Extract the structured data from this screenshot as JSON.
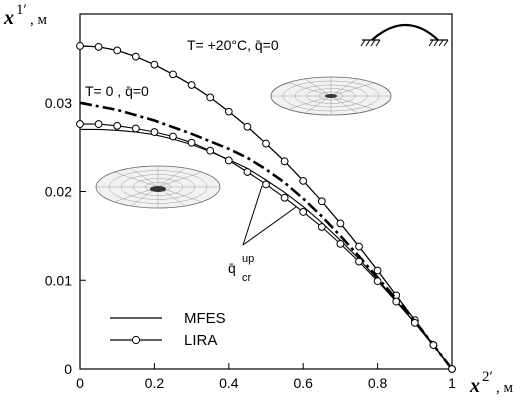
{
  "chart_data": {
    "type": "line",
    "xlabel": {
      "symbol": "x",
      "sup": "2′",
      "unit": ", м"
    },
    "ylabel": {
      "symbol": "x",
      "sup": "1′",
      "unit": ", м"
    },
    "xlim": [
      0,
      1
    ],
    "ylim": [
      0,
      0.04
    ],
    "xticks": [
      "0",
      "0.2",
      "0.4",
      "0.6",
      "0.8",
      "1"
    ],
    "yticks": [
      "0",
      "0.01",
      "0.02",
      "0.03"
    ],
    "xtick_values": [
      0,
      0.2,
      0.4,
      0.6,
      0.8,
      1
    ],
    "ytick_values": [
      0,
      0.01,
      0.02,
      0.03
    ],
    "grid": false,
    "legend_position": "bottom-left",
    "legend": [
      {
        "label": "MFES",
        "style": "solid"
      },
      {
        "label": "LIRA",
        "style": "circle-markers"
      }
    ],
    "series": [
      {
        "style": "solid",
        "x": [
          0,
          0.05,
          0.1,
          0.15,
          0.2,
          0.25,
          0.3,
          0.35,
          0.4,
          0.45,
          0.5,
          0.55,
          0.6,
          0.65,
          0.7,
          0.75,
          0.8,
          0.85,
          0.9,
          0.95,
          1.0
        ],
        "y": [
          0.0364,
          0.0363,
          0.0359,
          0.0352,
          0.0343,
          0.0332,
          0.032,
          0.0306,
          0.029,
          0.0273,
          0.0254,
          0.0234,
          0.0212,
          0.0189,
          0.0164,
          0.0138,
          0.0111,
          0.0083,
          0.0055,
          0.0027,
          0.0
        ]
      },
      {
        "style": "circle-markers",
        "x": [
          0,
          0.05,
          0.1,
          0.15,
          0.2,
          0.25,
          0.3,
          0.35,
          0.4,
          0.45,
          0.5,
          0.55,
          0.6,
          0.65,
          0.7,
          0.75,
          0.8,
          0.85,
          0.9,
          0.95,
          1.0
        ],
        "y": [
          0.0364,
          0.0363,
          0.0359,
          0.0352,
          0.0343,
          0.0332,
          0.032,
          0.0306,
          0.029,
          0.0273,
          0.0254,
          0.0234,
          0.0212,
          0.0189,
          0.0164,
          0.0138,
          0.0111,
          0.0083,
          0.0055,
          0.0027,
          0.0
        ]
      },
      {
        "style": "dash-dot",
        "x": [
          0,
          0.1,
          0.2,
          0.3,
          0.4,
          0.45,
          0.5,
          0.55,
          0.6,
          0.65,
          0.7,
          0.75,
          0.8,
          0.85,
          0.9,
          0.95,
          1.0
        ],
        "y": [
          0.03,
          0.0292,
          0.028,
          0.0265,
          0.0248,
          0.0238,
          0.0225,
          0.021,
          0.0192,
          0.0172,
          0.015,
          0.0127,
          0.0103,
          0.0079,
          0.0054,
          0.0027,
          0.0
        ]
      },
      {
        "style": "solid",
        "x": [
          0,
          0.05,
          0.1,
          0.15,
          0.2,
          0.25,
          0.3,
          0.35,
          0.4,
          0.45,
          0.5,
          0.55,
          0.6,
          0.65,
          0.7,
          0.75,
          0.8,
          0.85,
          0.9,
          0.95,
          1.0
        ],
        "y": [
          0.027,
          0.027,
          0.0269,
          0.0267,
          0.0264,
          0.0259,
          0.0253,
          0.0245,
          0.0236,
          0.0226,
          0.0213,
          0.0199,
          0.0183,
          0.0165,
          0.0145,
          0.0124,
          0.0101,
          0.0077,
          0.0052,
          0.0026,
          0.0
        ]
      },
      {
        "style": "circle-markers",
        "x": [
          0,
          0.05,
          0.1,
          0.15,
          0.2,
          0.25,
          0.3,
          0.35,
          0.4,
          0.45,
          0.5,
          0.55,
          0.6,
          0.65,
          0.7,
          0.75,
          0.8,
          0.85,
          0.9,
          0.95,
          1.0
        ],
        "y": [
          0.0276,
          0.0276,
          0.0274,
          0.0271,
          0.0267,
          0.0262,
          0.0255,
          0.0246,
          0.0235,
          0.0222,
          0.0208,
          0.0193,
          0.0177,
          0.016,
          0.0141,
          0.0121,
          0.0099,
          0.0076,
          0.0052,
          0.0027,
          0.0
        ]
      }
    ],
    "annotations": [
      {
        "text": "T= +20°C, q̄=0"
      },
      {
        "text": "T= 0 , q̄=0"
      },
      {
        "text_base": "q̄",
        "sup": "up",
        "sub": "cr"
      }
    ]
  }
}
